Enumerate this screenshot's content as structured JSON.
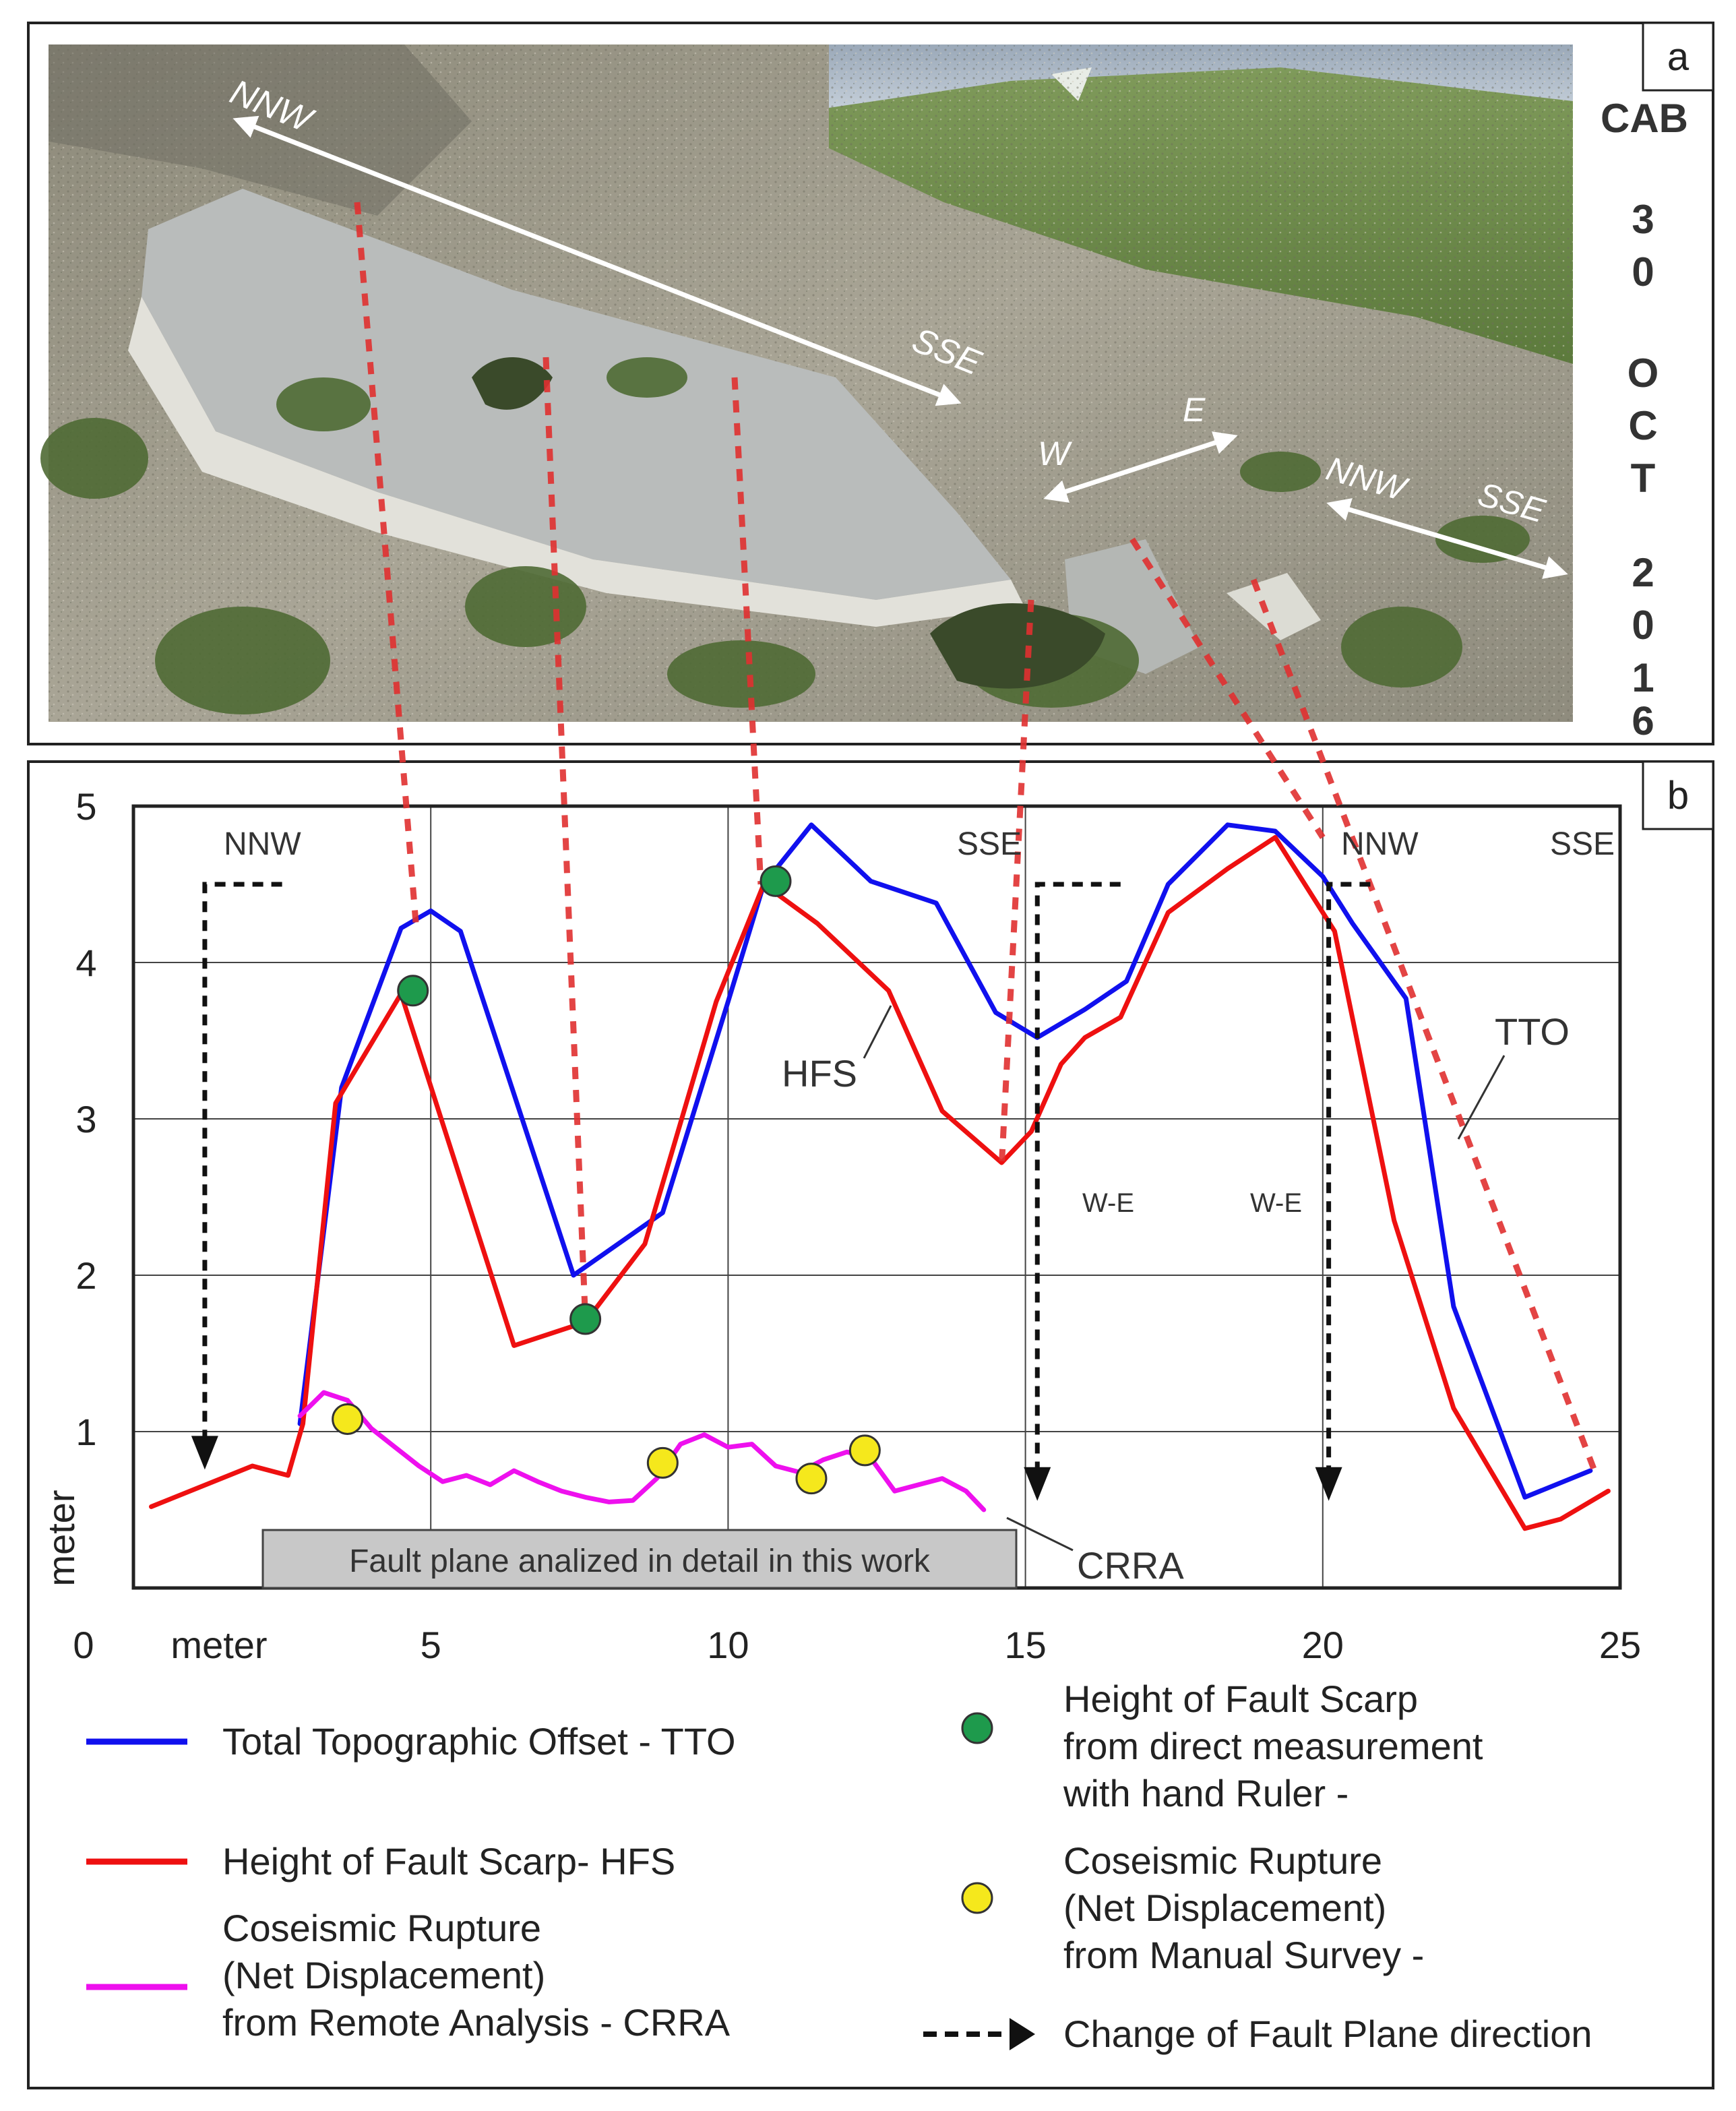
{
  "figure": {
    "panel_a_label": "a",
    "panel_b_label": "b",
    "side_text": [
      "CAB",
      "3",
      "0",
      "O",
      "C",
      "T",
      "2",
      "0",
      "1",
      "6"
    ],
    "photo_arrows": [
      {
        "left": "NNW",
        "right": "SSE"
      },
      {
        "left": "W",
        "right": "E"
      },
      {
        "left": "NNW",
        "right": "SSE"
      }
    ]
  },
  "chart_data": {
    "type": "line",
    "title": "",
    "xlabel": "meter",
    "ylabel": "meter",
    "origin_label": "0",
    "xlim": [
      0,
      25
    ],
    "ylim": [
      0,
      5
    ],
    "xticks": [
      5,
      10,
      15,
      20,
      25
    ],
    "yticks": [
      1,
      2,
      3,
      4,
      5
    ],
    "grid": true,
    "series": [
      {
        "name": "Total Topographic Offset - TTO",
        "short": "TTO",
        "color": "#1010ee",
        "x": [
          2.8,
          3.5,
          4.5,
          5.0,
          5.5,
          7.4,
          8.9,
          10.0,
          10.6,
          11.4,
          12.4,
          13.5,
          14.5,
          15.2,
          16.0,
          16.7,
          17.4,
          18.4,
          19.2,
          20.0,
          20.5,
          21.4,
          22.2,
          23.4,
          24.5
        ],
        "y": [
          1.05,
          3.2,
          4.22,
          4.33,
          4.2,
          2.0,
          2.4,
          3.75,
          4.5,
          4.88,
          4.52,
          4.38,
          3.68,
          3.52,
          3.7,
          3.88,
          4.5,
          4.88,
          4.84,
          4.55,
          4.25,
          3.77,
          1.8,
          0.58,
          0.75
        ]
      },
      {
        "name": "Height of Fault Scarp- HFS",
        "short": "HFS",
        "color": "#ee1010",
        "x": [
          0.3,
          2.0,
          2.6,
          2.85,
          3.4,
          4.5,
          6.4,
          7.6,
          8.6,
          9.8,
          10.6,
          11.5,
          12.7,
          13.6,
          14.6,
          15.1,
          15.6,
          16.0,
          16.6,
          17.4,
          18.4,
          19.2,
          20.2,
          21.2,
          22.2,
          23.4,
          24.0,
          24.8
        ],
        "y": [
          0.52,
          0.78,
          0.72,
          1.05,
          3.1,
          3.8,
          1.55,
          1.7,
          2.2,
          3.75,
          4.5,
          4.25,
          3.82,
          3.05,
          2.72,
          2.92,
          3.35,
          3.52,
          3.65,
          4.32,
          4.6,
          4.8,
          4.2,
          2.35,
          1.15,
          0.38,
          0.44,
          0.62
        ]
      },
      {
        "name": "Coseismic Rupture (Net Displacement) from Remote Analysis - CRRA",
        "short": "CRRA",
        "color": "#ee10ee",
        "x": [
          2.8,
          3.2,
          3.6,
          4.0,
          4.4,
          4.8,
          5.2,
          5.6,
          6.0,
          6.4,
          6.8,
          7.2,
          7.6,
          8.0,
          8.4,
          8.8,
          9.2,
          9.6,
          10.0,
          10.4,
          10.8,
          11.2,
          11.6,
          12.0,
          12.4,
          12.8,
          13.2,
          13.6,
          14.0,
          14.3
        ],
        "y": [
          1.1,
          1.25,
          1.2,
          1.02,
          0.9,
          0.78,
          0.68,
          0.72,
          0.66,
          0.75,
          0.68,
          0.62,
          0.58,
          0.55,
          0.56,
          0.7,
          0.92,
          0.98,
          0.9,
          0.92,
          0.78,
          0.74,
          0.82,
          0.87,
          0.83,
          0.62,
          0.66,
          0.7,
          0.62,
          0.5
        ]
      }
    ],
    "points": [
      {
        "name": "Height of Fault Scarp from direct measurement with hand Ruler -",
        "color": "#1e9a4c",
        "x": [
          4.7,
          7.6,
          10.8
        ],
        "y": [
          3.82,
          1.72,
          4.52
        ]
      },
      {
        "name": "Coseismic Rupture (Net Displacement) from Manual Survey -",
        "color": "#f5e81c",
        "x": [
          3.6,
          8.9,
          11.4,
          12.3
        ],
        "y": [
          1.08,
          0.8,
          0.7,
          0.88
        ]
      }
    ],
    "annotations": [
      {
        "text": "NNW",
        "x": 2.3,
        "y": 4.7
      },
      {
        "text": "SSE",
        "x": 15.3,
        "y": 4.7
      },
      {
        "text": "NNW",
        "x": 20.3,
        "y": 4.7
      },
      {
        "text": "SSE",
        "x": 23.8,
        "y": 4.7
      },
      {
        "text": "W-E",
        "x": 15.8,
        "y": 2.55
      },
      {
        "text": "W-E",
        "x": 18.6,
        "y": 2.55
      },
      {
        "text": "HFS",
        "x": 12.4,
        "y": 3.2
      },
      {
        "text": "TTO",
        "x": 24.0,
        "y": 3.75
      },
      {
        "text": "CRRA",
        "x": 15.6,
        "y": 0.35
      },
      {
        "text": "Fault plane analized in detail in this work",
        "x": 8.5,
        "y": 0.2
      }
    ],
    "direction_changes": [
      {
        "x0": 1.2,
        "x1": 2.5,
        "y_top": 4.5,
        "y_end": 0.8
      },
      {
        "x0": 15.2,
        "x1": 16.6,
        "y_top": 4.5,
        "y_end": 0.6
      },
      {
        "x0": 20.1,
        "x1": 20.8,
        "y_top": 4.5,
        "y_end": 0.6
      }
    ],
    "legend": {
      "tto": "Total Topographic Offset - TTO",
      "hfs": "Height of Fault Scarp- HFS",
      "crra": [
        "Coseismic Rupture",
        "(Net Displacement)",
        "from Remote Analysis - CRRA"
      ],
      "green": [
        "Height of Fault Scarp",
        "from direct measurement",
        "with hand Ruler -"
      ],
      "yellow": [
        "Coseismic Rupture",
        "(Net Displacement)",
        "from Manual Survey -"
      ],
      "arrow": "Change of Fault Plane direction"
    }
  }
}
